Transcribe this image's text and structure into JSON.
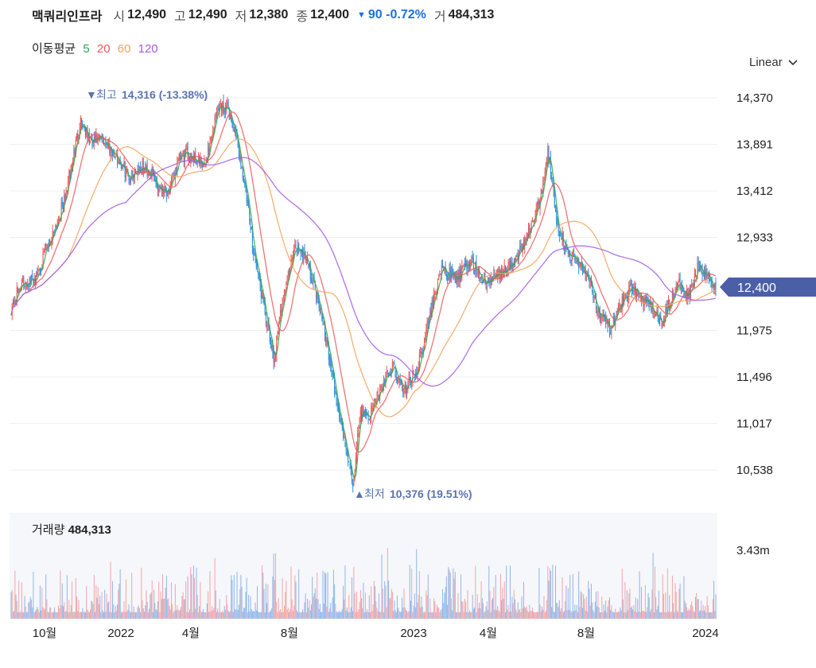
{
  "header": {
    "name": "맥쿼리인프라",
    "open_label": "시",
    "open": "12,490",
    "high_label": "고",
    "high": "12,490",
    "low_label": "저",
    "low": "12,380",
    "close_label": "종",
    "close": "12,400",
    "change": "90 -0.72%",
    "volume_label": "거",
    "volume": "484,313"
  },
  "moving_average": {
    "label": "이동평균",
    "periods": [
      {
        "period": "5",
        "color": "#2fa84f"
      },
      {
        "period": "20",
        "color": "#ee5a5a"
      },
      {
        "period": "60",
        "color": "#f5a35c"
      },
      {
        "period": "120",
        "color": "#a45be0"
      }
    ]
  },
  "scale_select": {
    "value": "Linear"
  },
  "colors": {
    "up": "#f0585a",
    "down": "#2f8fe0",
    "current": "#4b5fa6",
    "annotation": "#5b73b0"
  },
  "volume_panel": {
    "label": "거래량",
    "value": "484,313",
    "axis_label": "3.43m"
  },
  "chart_data": {
    "type": "candlestick",
    "price_axis_ticks": [
      "14,370",
      "13,891",
      "13,412",
      "12,933",
      "11,975",
      "11,496",
      "11,017",
      "10,538"
    ],
    "ylim": [
      10376,
      14450
    ],
    "current_price_label": "12,400",
    "x_ticks": [
      "10월",
      "2022",
      "4월",
      "8월",
      "2023",
      "4월",
      "8월",
      "2024"
    ],
    "annotations": {
      "max_label": "최고",
      "max_value": "14,316 (-13.38%)",
      "min_label": "최저",
      "min_value": "10,376 (19.51%)"
    },
    "close_anchors": [
      [
        0,
        12200
      ],
      [
        10,
        12450
      ],
      [
        25,
        12500
      ],
      [
        40,
        12900
      ],
      [
        55,
        13300
      ],
      [
        72,
        14150
      ],
      [
        82,
        13900
      ],
      [
        95,
        13950
      ],
      [
        110,
        13750
      ],
      [
        122,
        13550
      ],
      [
        132,
        13650
      ],
      [
        145,
        13600
      ],
      [
        152,
        13450
      ],
      [
        164,
        13420
      ],
      [
        175,
        13750
      ],
      [
        185,
        13800
      ],
      [
        200,
        13650
      ],
      [
        215,
        14300
      ],
      [
        225,
        14250
      ],
      [
        232,
        14000
      ],
      [
        240,
        13600
      ],
      [
        252,
        12750
      ],
      [
        262,
        12200
      ],
      [
        272,
        11650
      ],
      [
        282,
        12350
      ],
      [
        295,
        12850
      ],
      [
        305,
        12750
      ],
      [
        312,
        12500
      ],
      [
        322,
        12150
      ],
      [
        336,
        11300
      ],
      [
        346,
        10800
      ],
      [
        354,
        10376
      ],
      [
        362,
        11150
      ],
      [
        372,
        11100
      ],
      [
        384,
        11400
      ],
      [
        396,
        11600
      ],
      [
        406,
        11350
      ],
      [
        420,
        11550
      ],
      [
        433,
        12100
      ],
      [
        445,
        12600
      ],
      [
        462,
        12500
      ],
      [
        476,
        12700
      ],
      [
        492,
        12450
      ],
      [
        505,
        12550
      ],
      [
        520,
        12650
      ],
      [
        535,
        12950
      ],
      [
        548,
        13300
      ],
      [
        556,
        13850
      ],
      [
        566,
        13050
      ],
      [
        578,
        12750
      ],
      [
        590,
        12650
      ],
      [
        600,
        12450
      ],
      [
        610,
        12100
      ],
      [
        622,
        12000
      ],
      [
        632,
        12250
      ],
      [
        644,
        12450
      ],
      [
        652,
        12300
      ],
      [
        664,
        12200
      ],
      [
        672,
        12050
      ],
      [
        682,
        12250
      ],
      [
        692,
        12450
      ],
      [
        702,
        12350
      ],
      [
        712,
        12650
      ],
      [
        722,
        12550
      ],
      [
        730,
        12400
      ]
    ],
    "volume_axis_max": "3.43m"
  }
}
